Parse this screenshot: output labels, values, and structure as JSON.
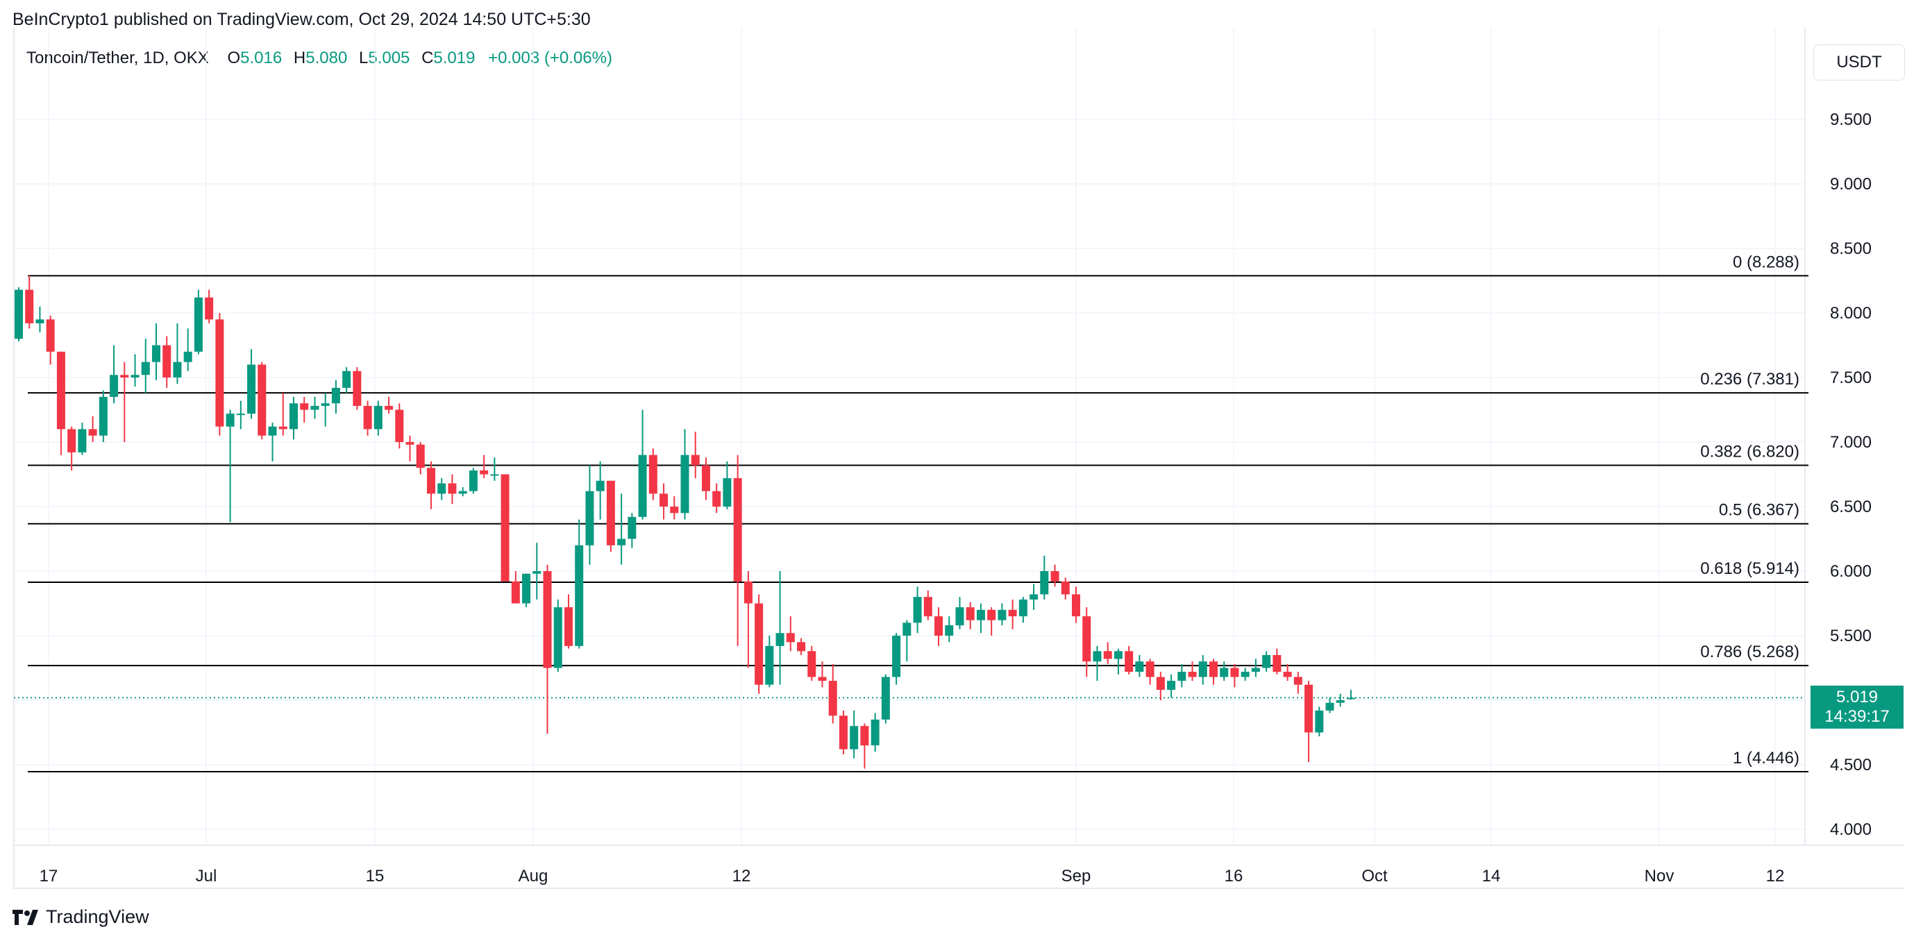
{
  "header": {
    "publisher": "BeInCrypto1 published on TradingView.com, Oct 29, 2024 14:50 UTC+5:30"
  },
  "legend": {
    "symbol": "Toncoin/Tether, 1D, OKX",
    "o_label": "O",
    "o_value": "5.016",
    "h_label": "H",
    "h_value": "5.080",
    "l_label": "L",
    "l_value": "5.005",
    "c_label": "C",
    "c_value": "5.019",
    "change": "+0.003 (+0.06%)"
  },
  "currency_button": "USDT",
  "last_price": {
    "value": "5.019",
    "countdown": "14:39:17"
  },
  "footer": {
    "brand": "TradingView"
  },
  "colors": {
    "up": "#089981",
    "down": "#f23645",
    "fib_line": "#000000",
    "grid": "#f0f3fa"
  },
  "chart_data": {
    "type": "candlestick",
    "title": "Toncoin/Tether, 1D, OKX",
    "ylim": [
      3.8,
      9.9
    ],
    "yticks": [
      "9.500",
      "9.000",
      "8.500",
      "8.000",
      "7.500",
      "7.000",
      "6.500",
      "6.000",
      "5.500",
      "5.000",
      "4.500",
      "4.000"
    ],
    "xticks": [
      "17",
      "Jul",
      "15",
      "Aug",
      "12",
      "Sep",
      "16",
      "Oct",
      "14",
      "Nov",
      "12"
    ],
    "fib_levels": [
      {
        "ratio": "0",
        "price": 8.288,
        "label": "0 (8.288)"
      },
      {
        "ratio": "0.236",
        "price": 7.381,
        "label": "0.236 (7.381)"
      },
      {
        "ratio": "0.382",
        "price": 6.82,
        "label": "0.382 (6.820)"
      },
      {
        "ratio": "0.5",
        "price": 6.367,
        "label": "0.5 (6.367)"
      },
      {
        "ratio": "0.618",
        "price": 5.914,
        "label": "0.618 (5.914)"
      },
      {
        "ratio": "0.786",
        "price": 5.268,
        "label": "0.786 (5.268)"
      },
      {
        "ratio": "1",
        "price": 4.446,
        "label": "1 (4.446)"
      }
    ],
    "candles": [
      {
        "o": 7.8,
        "h": 8.2,
        "l": 7.78,
        "c": 8.18
      },
      {
        "o": 8.18,
        "h": 8.29,
        "l": 7.88,
        "c": 7.92
      },
      {
        "o": 7.92,
        "h": 8.05,
        "l": 7.85,
        "c": 7.95
      },
      {
        "o": 7.95,
        "h": 7.98,
        "l": 7.6,
        "c": 7.7
      },
      {
        "o": 7.7,
        "h": 7.7,
        "l": 6.9,
        "c": 7.1
      },
      {
        "o": 7.1,
        "h": 7.12,
        "l": 6.78,
        "c": 6.92
      },
      {
        "o": 6.92,
        "h": 7.15,
        "l": 6.9,
        "c": 7.1
      },
      {
        "o": 7.1,
        "h": 7.2,
        "l": 7.0,
        "c": 7.05
      },
      {
        "o": 7.05,
        "h": 7.4,
        "l": 7.0,
        "c": 7.35
      },
      {
        "o": 7.35,
        "h": 7.75,
        "l": 7.3,
        "c": 7.52
      },
      {
        "o": 7.52,
        "h": 7.62,
        "l": 7.0,
        "c": 7.5
      },
      {
        "o": 7.5,
        "h": 7.68,
        "l": 7.43,
        "c": 7.52
      },
      {
        "o": 7.52,
        "h": 7.8,
        "l": 7.38,
        "c": 7.62
      },
      {
        "o": 7.62,
        "h": 7.92,
        "l": 7.48,
        "c": 7.75
      },
      {
        "o": 7.75,
        "h": 7.82,
        "l": 7.42,
        "c": 7.5
      },
      {
        "o": 7.5,
        "h": 7.92,
        "l": 7.45,
        "c": 7.62
      },
      {
        "o": 7.62,
        "h": 7.88,
        "l": 7.55,
        "c": 7.7
      },
      {
        "o": 7.7,
        "h": 8.18,
        "l": 7.68,
        "c": 8.12
      },
      {
        "o": 8.12,
        "h": 8.18,
        "l": 7.92,
        "c": 7.95
      },
      {
        "o": 7.95,
        "h": 8.0,
        "l": 7.05,
        "c": 7.12
      },
      {
        "o": 7.12,
        "h": 7.25,
        "l": 6.38,
        "c": 7.22
      },
      {
        "o": 7.22,
        "h": 7.32,
        "l": 7.1,
        "c": 7.22
      },
      {
        "o": 7.22,
        "h": 7.72,
        "l": 7.18,
        "c": 7.6
      },
      {
        "o": 7.6,
        "h": 7.62,
        "l": 7.02,
        "c": 7.05
      },
      {
        "o": 7.05,
        "h": 7.15,
        "l": 6.85,
        "c": 7.12
      },
      {
        "o": 7.12,
        "h": 7.38,
        "l": 7.05,
        "c": 7.1
      },
      {
        "o": 7.1,
        "h": 7.35,
        "l": 7.02,
        "c": 7.3
      },
      {
        "o": 7.3,
        "h": 7.35,
        "l": 7.15,
        "c": 7.25
      },
      {
        "o": 7.25,
        "h": 7.35,
        "l": 7.18,
        "c": 7.28
      },
      {
        "o": 7.28,
        "h": 7.38,
        "l": 7.12,
        "c": 7.3
      },
      {
        "o": 7.3,
        "h": 7.48,
        "l": 7.22,
        "c": 7.42
      },
      {
        "o": 7.42,
        "h": 7.58,
        "l": 7.38,
        "c": 7.55
      },
      {
        "o": 7.55,
        "h": 7.58,
        "l": 7.25,
        "c": 7.28
      },
      {
        "o": 7.28,
        "h": 7.32,
        "l": 7.05,
        "c": 7.1
      },
      {
        "o": 7.1,
        "h": 7.32,
        "l": 7.05,
        "c": 7.28
      },
      {
        "o": 7.28,
        "h": 7.35,
        "l": 7.22,
        "c": 7.25
      },
      {
        "o": 7.25,
        "h": 7.3,
        "l": 6.95,
        "c": 7.0
      },
      {
        "o": 7.0,
        "h": 7.05,
        "l": 6.85,
        "c": 6.98
      },
      {
        "o": 6.98,
        "h": 7.0,
        "l": 6.75,
        "c": 6.8
      },
      {
        "o": 6.8,
        "h": 6.85,
        "l": 6.48,
        "c": 6.6
      },
      {
        "o": 6.6,
        "h": 6.72,
        "l": 6.55,
        "c": 6.68
      },
      {
        "o": 6.68,
        "h": 6.75,
        "l": 6.52,
        "c": 6.6
      },
      {
        "o": 6.6,
        "h": 6.65,
        "l": 6.58,
        "c": 6.62
      },
      {
        "o": 6.62,
        "h": 6.8,
        "l": 6.6,
        "c": 6.78
      },
      {
        "o": 6.78,
        "h": 6.9,
        "l": 6.72,
        "c": 6.75
      },
      {
        "o": 6.75,
        "h": 6.88,
        "l": 6.7,
        "c": 6.75
      },
      {
        "o": 6.75,
        "h": 6.75,
        "l": 5.92,
        "c": 5.92
      },
      {
        "o": 5.92,
        "h": 6.0,
        "l": 5.78,
        "c": 5.75
      },
      {
        "o": 5.75,
        "h": 5.98,
        "l": 5.72,
        "c": 5.98
      },
      {
        "o": 5.98,
        "h": 6.22,
        "l": 5.78,
        "c": 6.0
      },
      {
        "o": 6.0,
        "h": 6.05,
        "l": 4.74,
        "c": 5.25
      },
      {
        "o": 5.25,
        "h": 5.78,
        "l": 5.22,
        "c": 5.72
      },
      {
        "o": 5.72,
        "h": 5.82,
        "l": 5.4,
        "c": 5.42
      },
      {
        "o": 5.42,
        "h": 6.4,
        "l": 5.4,
        "c": 6.2
      },
      {
        "o": 6.2,
        "h": 6.82,
        "l": 6.05,
        "c": 6.62
      },
      {
        "o": 6.62,
        "h": 6.85,
        "l": 6.4,
        "c": 6.7
      },
      {
        "o": 6.7,
        "h": 6.7,
        "l": 6.15,
        "c": 6.2
      },
      {
        "o": 6.2,
        "h": 6.6,
        "l": 6.05,
        "c": 6.25
      },
      {
        "o": 6.25,
        "h": 6.45,
        "l": 6.18,
        "c": 6.42
      },
      {
        "o": 6.42,
        "h": 7.25,
        "l": 6.4,
        "c": 6.9
      },
      {
        "o": 6.9,
        "h": 6.95,
        "l": 6.55,
        "c": 6.6
      },
      {
        "o": 6.6,
        "h": 6.68,
        "l": 6.4,
        "c": 6.5
      },
      {
        "o": 6.5,
        "h": 6.58,
        "l": 6.4,
        "c": 6.45
      },
      {
        "o": 6.45,
        "h": 7.1,
        "l": 6.4,
        "c": 6.9
      },
      {
        "o": 6.9,
        "h": 7.08,
        "l": 6.72,
        "c": 6.82
      },
      {
        "o": 6.82,
        "h": 6.88,
        "l": 6.55,
        "c": 6.62
      },
      {
        "o": 6.62,
        "h": 6.68,
        "l": 6.45,
        "c": 6.5
      },
      {
        "o": 6.5,
        "h": 6.85,
        "l": 6.48,
        "c": 6.72
      },
      {
        "o": 6.72,
        "h": 6.9,
        "l": 5.42,
        "c": 5.92
      },
      {
        "o": 5.92,
        "h": 6.0,
        "l": 5.25,
        "c": 5.75
      },
      {
        "o": 5.75,
        "h": 5.82,
        "l": 5.05,
        "c": 5.12
      },
      {
        "o": 5.12,
        "h": 5.5,
        "l": 5.1,
        "c": 5.42
      },
      {
        "o": 5.42,
        "h": 6.0,
        "l": 5.12,
        "c": 5.52
      },
      {
        "o": 5.52,
        "h": 5.65,
        "l": 5.38,
        "c": 5.45
      },
      {
        "o": 5.45,
        "h": 5.48,
        "l": 5.35,
        "c": 5.38
      },
      {
        "o": 5.38,
        "h": 5.42,
        "l": 5.15,
        "c": 5.18
      },
      {
        "o": 5.18,
        "h": 5.3,
        "l": 5.1,
        "c": 5.15
      },
      {
        "o": 5.15,
        "h": 5.28,
        "l": 4.82,
        "c": 4.88
      },
      {
        "o": 4.88,
        "h": 4.92,
        "l": 4.58,
        "c": 4.62
      },
      {
        "o": 4.62,
        "h": 4.92,
        "l": 4.55,
        "c": 4.8
      },
      {
        "o": 4.8,
        "h": 4.82,
        "l": 4.47,
        "c": 4.65
      },
      {
        "o": 4.65,
        "h": 4.9,
        "l": 4.6,
        "c": 4.85
      },
      {
        "o": 4.85,
        "h": 5.2,
        "l": 4.82,
        "c": 5.18
      },
      {
        "o": 5.18,
        "h": 5.52,
        "l": 5.12,
        "c": 5.5
      },
      {
        "o": 5.5,
        "h": 5.62,
        "l": 5.3,
        "c": 5.6
      },
      {
        "o": 5.6,
        "h": 5.88,
        "l": 5.52,
        "c": 5.8
      },
      {
        "o": 5.8,
        "h": 5.85,
        "l": 5.62,
        "c": 5.65
      },
      {
        "o": 5.65,
        "h": 5.72,
        "l": 5.42,
        "c": 5.5
      },
      {
        "o": 5.5,
        "h": 5.65,
        "l": 5.45,
        "c": 5.58
      },
      {
        "o": 5.58,
        "h": 5.8,
        "l": 5.55,
        "c": 5.72
      },
      {
        "o": 5.72,
        "h": 5.76,
        "l": 5.55,
        "c": 5.62
      },
      {
        "o": 5.62,
        "h": 5.75,
        "l": 5.52,
        "c": 5.7
      },
      {
        "o": 5.7,
        "h": 5.72,
        "l": 5.5,
        "c": 5.62
      },
      {
        "o": 5.62,
        "h": 5.75,
        "l": 5.58,
        "c": 5.7
      },
      {
        "o": 5.7,
        "h": 5.78,
        "l": 5.55,
        "c": 5.65
      },
      {
        "o": 5.65,
        "h": 5.8,
        "l": 5.6,
        "c": 5.78
      },
      {
        "o": 5.78,
        "h": 5.9,
        "l": 5.7,
        "c": 5.82
      },
      {
        "o": 5.82,
        "h": 6.12,
        "l": 5.78,
        "c": 6.0
      },
      {
        "o": 6.0,
        "h": 6.05,
        "l": 5.88,
        "c": 5.92
      },
      {
        "o": 5.92,
        "h": 5.95,
        "l": 5.78,
        "c": 5.82
      },
      {
        "o": 5.82,
        "h": 5.88,
        "l": 5.6,
        "c": 5.65
      },
      {
        "o": 5.65,
        "h": 5.72,
        "l": 5.18,
        "c": 5.3
      },
      {
        "o": 5.3,
        "h": 5.42,
        "l": 5.15,
        "c": 5.38
      },
      {
        "o": 5.38,
        "h": 5.45,
        "l": 5.28,
        "c": 5.32
      },
      {
        "o": 5.32,
        "h": 5.4,
        "l": 5.2,
        "c": 5.38
      },
      {
        "o": 5.38,
        "h": 5.42,
        "l": 5.2,
        "c": 5.22
      },
      {
        "o": 5.22,
        "h": 5.35,
        "l": 5.18,
        "c": 5.3
      },
      {
        "o": 5.3,
        "h": 5.32,
        "l": 5.12,
        "c": 5.18
      },
      {
        "o": 5.18,
        "h": 5.22,
        "l": 5.0,
        "c": 5.08
      },
      {
        "o": 5.08,
        "h": 5.2,
        "l": 5.02,
        "c": 5.15
      },
      {
        "o": 5.15,
        "h": 5.28,
        "l": 5.1,
        "c": 5.22
      },
      {
        "o": 5.22,
        "h": 5.3,
        "l": 5.15,
        "c": 5.18
      },
      {
        "o": 5.18,
        "h": 5.35,
        "l": 5.12,
        "c": 5.3
      },
      {
        "o": 5.3,
        "h": 5.32,
        "l": 5.12,
        "c": 5.18
      },
      {
        "o": 5.18,
        "h": 5.3,
        "l": 5.15,
        "c": 5.25
      },
      {
        "o": 5.25,
        "h": 5.28,
        "l": 5.1,
        "c": 5.18
      },
      {
        "o": 5.18,
        "h": 5.25,
        "l": 5.15,
        "c": 5.22
      },
      {
        "o": 5.22,
        "h": 5.32,
        "l": 5.18,
        "c": 5.25
      },
      {
        "o": 5.25,
        "h": 5.38,
        "l": 5.22,
        "c": 5.35
      },
      {
        "o": 5.35,
        "h": 5.4,
        "l": 5.2,
        "c": 5.22
      },
      {
        "o": 5.22,
        "h": 5.28,
        "l": 5.15,
        "c": 5.18
      },
      {
        "o": 5.18,
        "h": 5.22,
        "l": 5.05,
        "c": 5.12
      },
      {
        "o": 5.12,
        "h": 5.15,
        "l": 4.52,
        "c": 4.75
      },
      {
        "o": 4.75,
        "h": 4.95,
        "l": 4.72,
        "c": 4.92
      },
      {
        "o": 4.92,
        "h": 5.02,
        "l": 4.9,
        "c": 4.98
      },
      {
        "o": 4.98,
        "h": 5.05,
        "l": 4.95,
        "c": 5.0
      },
      {
        "o": 5.016,
        "h": 5.08,
        "l": 5.005,
        "c": 5.019
      }
    ]
  }
}
